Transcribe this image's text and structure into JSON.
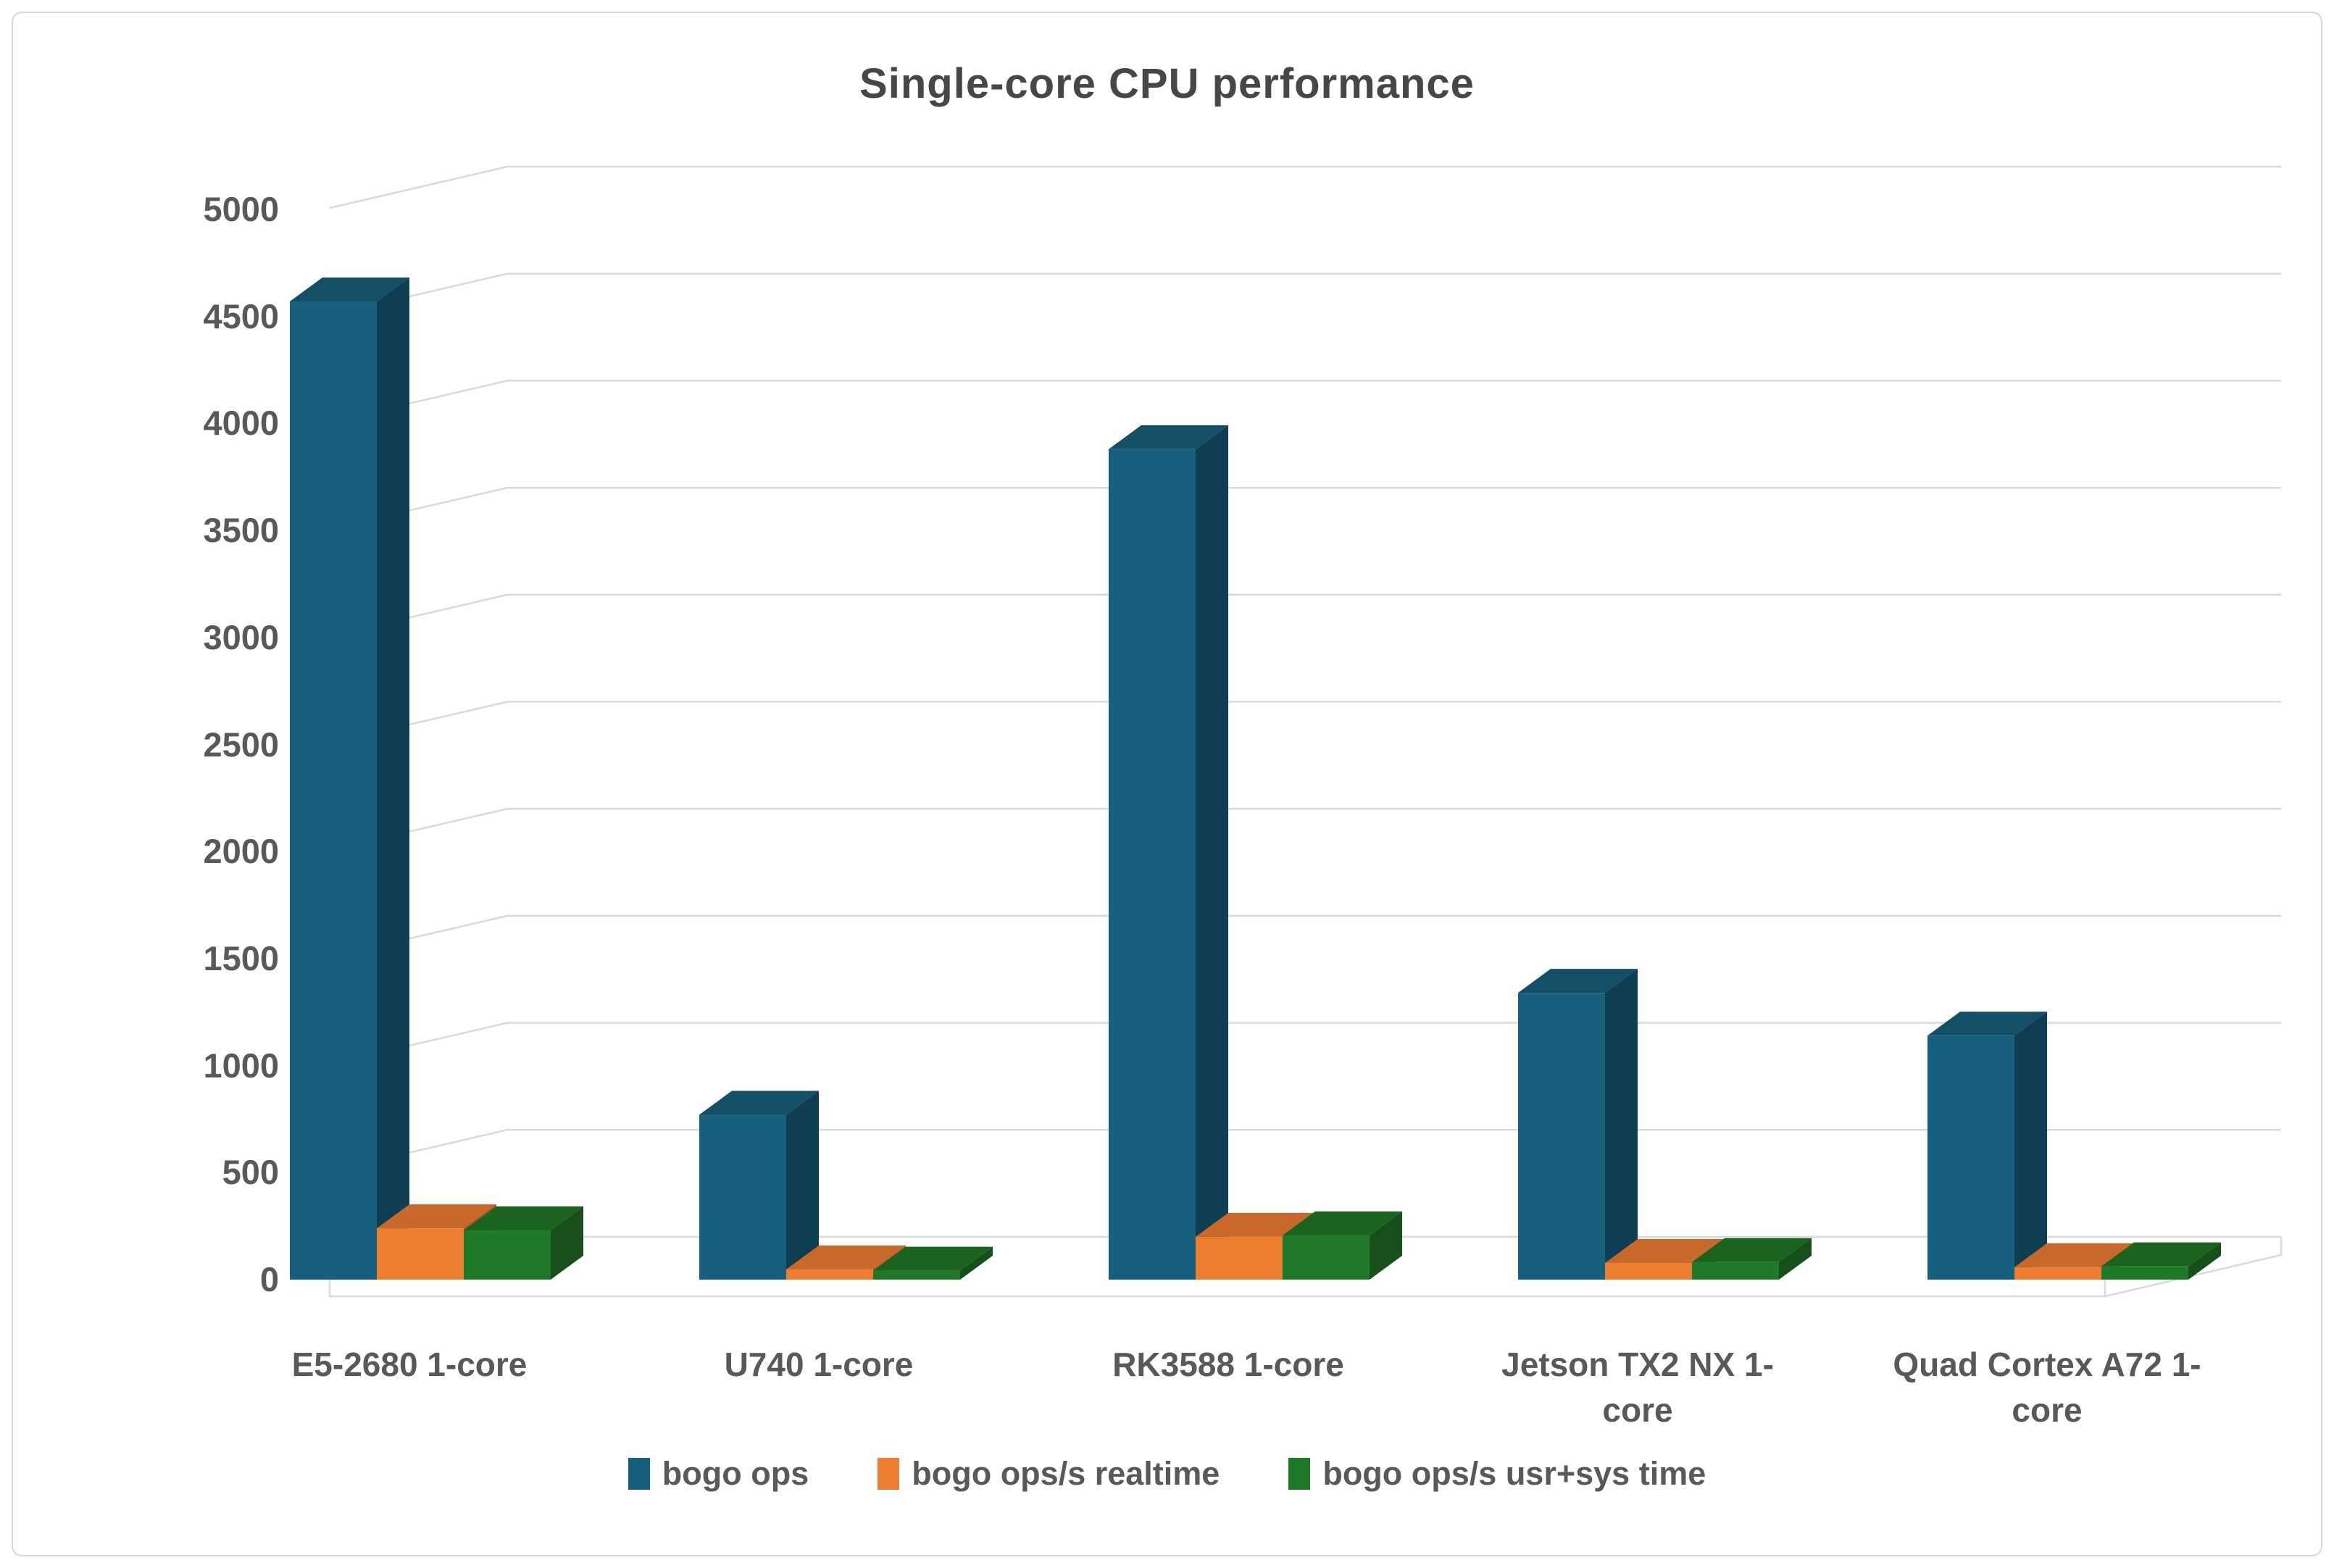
{
  "title": "Single-core CPU performance",
  "chart_data": {
    "type": "bar",
    "style": "3d-clustered-column",
    "title": "Single-core CPU performance",
    "categories": [
      "E5-2680 1-core",
      "U740 1-core",
      "RK3588 1-core",
      "Jetson TX2 NX 1-core",
      "Quad Cortex A72 1-core"
    ],
    "series": [
      {
        "name": "bogo ops",
        "base": "#16607E",
        "top": "#135067",
        "side": "#0E3E51",
        "values": [
          4570,
          770,
          3880,
          1340,
          1140
        ]
      },
      {
        "name": "bogo ops/s realtime",
        "base": "#ED7D31",
        "top": "#C8682A",
        "side": "#A25522",
        "values": [
          240,
          48,
          200,
          78,
          58
        ]
      },
      {
        "name": "bogo ops/s usr+sys time",
        "base": "#1E7A26",
        "top": "#1B6420",
        "side": "#164F1A",
        "values": [
          230,
          42,
          207,
          82,
          62
        ]
      }
    ],
    "xlabel": "",
    "ylabel": "",
    "ylim": [
      0,
      5000
    ],
    "ytick_step": 500,
    "yticks": [
      0,
      500,
      1000,
      1500,
      2000,
      2500,
      3000,
      3500,
      4000,
      4500,
      5000
    ],
    "grid": "horizontal",
    "legend_position": "bottom"
  },
  "colors": {
    "gridline": "#D9D9D9",
    "axis_text": "#595959",
    "title_text": "#474747",
    "chart_border": "#D6D6D6",
    "background": "#FFFFFF"
  }
}
